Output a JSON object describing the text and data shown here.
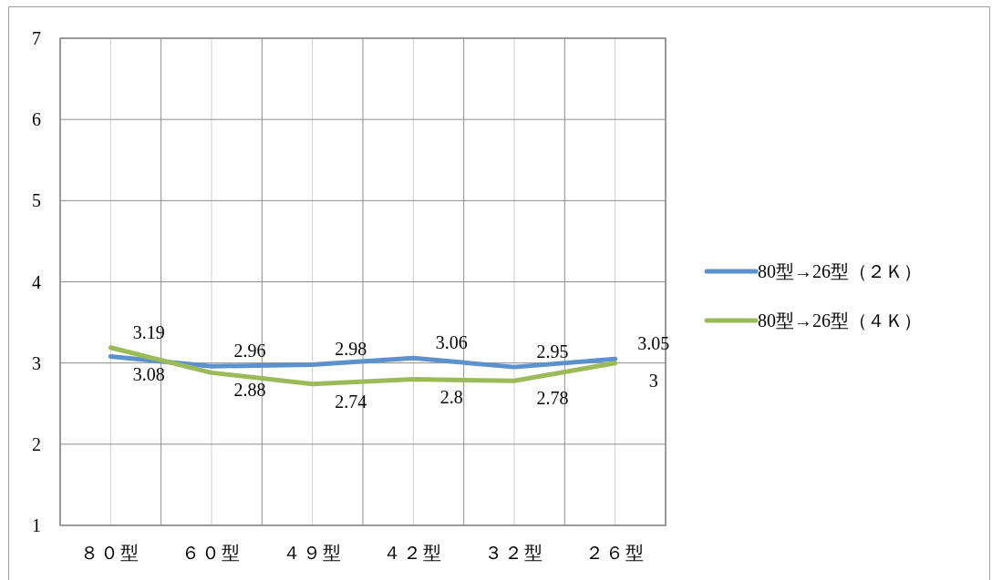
{
  "chart_data": {
    "type": "line",
    "categories": [
      "８０型",
      "６０型",
      "４９型",
      "４２型",
      "３２型",
      "２６型"
    ],
    "series": [
      {
        "name": "80型→26型（２Ｋ）",
        "color": "#5b92cd",
        "values": [
          3.08,
          2.96,
          2.98,
          3.06,
          2.95,
          3.05
        ]
      },
      {
        "name": "80型→26型（４Ｋ）",
        "color": "#9bbb59",
        "values": [
          3.19,
          2.88,
          2.74,
          2.8,
          2.78,
          3
        ]
      }
    ],
    "ylim": [
      1,
      7
    ],
    "yticks": [
      1,
      2,
      3,
      4,
      5,
      6,
      7
    ],
    "grid": true,
    "legend": "right",
    "data_labels": true,
    "marker": "none",
    "line_style": "solid"
  }
}
